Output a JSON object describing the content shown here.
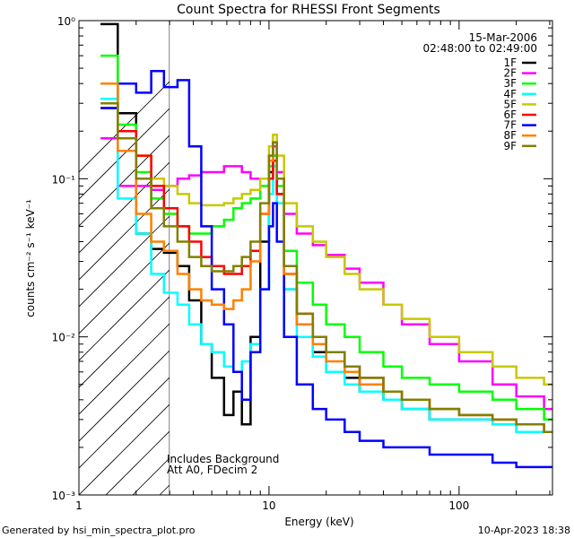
{
  "chart_data": {
    "type": "line",
    "title": "Count Spectra for RHESSI Front Segments",
    "xlabel": "Energy (keV)",
    "ylabel": "counts cm⁻² s⁻¹ keV⁻¹",
    "xscale": "log",
    "yscale": "log",
    "xlim": [
      1,
      310
    ],
    "ylim": [
      0.001,
      1.0
    ],
    "xticks": [
      {
        "value": 1,
        "label": "1"
      },
      {
        "value": 10,
        "label": "10"
      },
      {
        "value": 100,
        "label": "100"
      }
    ],
    "yticks": [
      {
        "value": 1,
        "label": "10⁰"
      },
      {
        "value": 0.1,
        "label": "10⁻¹"
      },
      {
        "value": 0.01,
        "label": "10⁻²"
      },
      {
        "value": 0.001,
        "label": "10⁻³"
      }
    ],
    "date": "15-Mar-2006",
    "time_range": "02:48:00 to 02:49:00",
    "annotation_lines": [
      "Includes Background",
      "Att A0, FDecim 2"
    ],
    "hatched_region_max_keV": 3,
    "legend_position": "top-right",
    "series": [
      {
        "name": "1F",
        "color": "#000000",
        "x": [
          1.3,
          1.6,
          2.0,
          2.4,
          2.8,
          3.3,
          3.8,
          4.4,
          5.0,
          5.8,
          6.5,
          7.2,
          8.0,
          9.0,
          10.0,
          10.5,
          11.0,
          12.0,
          14.0,
          17.0,
          20.0,
          25.0,
          30.0,
          40.0,
          50.0,
          70.0,
          100.0,
          150.0,
          200.0,
          280.0
        ],
        "y": [
          0.95,
          0.26,
          0.045,
          0.036,
          0.034,
          0.028,
          0.017,
          0.009,
          0.0055,
          0.0032,
          0.0045,
          0.0028,
          0.01,
          0.04,
          0.11,
          0.14,
          0.08,
          0.02,
          0.012,
          0.008,
          0.006,
          0.0055,
          0.0045,
          0.004,
          0.0035,
          0.003,
          0.003,
          0.0028,
          0.0025,
          0.0025
        ]
      },
      {
        "name": "2F",
        "color": "#ff00ff",
        "x": [
          1.3,
          1.6,
          2.0,
          2.4,
          2.8,
          3.3,
          3.8,
          4.4,
          5.0,
          5.8,
          6.5,
          7.2,
          8.0,
          9.0,
          10.0,
          10.5,
          11.0,
          12.0,
          14.0,
          17.0,
          20.0,
          25.0,
          30.0,
          40.0,
          50.0,
          70.0,
          100.0,
          150.0,
          200.0,
          280.0
        ],
        "y": [
          0.18,
          0.09,
          0.09,
          0.085,
          0.09,
          0.1,
          0.105,
          0.11,
          0.11,
          0.12,
          0.12,
          0.11,
          0.1,
          0.1,
          0.14,
          0.16,
          0.11,
          0.06,
          0.045,
          0.038,
          0.033,
          0.027,
          0.022,
          0.016,
          0.012,
          0.009,
          0.007,
          0.005,
          0.0042,
          0.0035
        ]
      },
      {
        "name": "3F",
        "color": "#00ff00",
        "x": [
          1.3,
          1.6,
          2.0,
          2.4,
          2.8,
          3.3,
          3.8,
          4.4,
          5.0,
          5.8,
          6.5,
          7.2,
          8.0,
          9.0,
          10.0,
          10.5,
          11.0,
          12.0,
          14.0,
          17.0,
          20.0,
          25.0,
          30.0,
          40.0,
          50.0,
          70.0,
          100.0,
          150.0,
          200.0,
          280.0
        ],
        "y": [
          0.6,
          0.22,
          0.11,
          0.075,
          0.06,
          0.05,
          0.045,
          0.045,
          0.05,
          0.055,
          0.065,
          0.07,
          0.075,
          0.09,
          0.12,
          0.14,
          0.09,
          0.035,
          0.022,
          0.016,
          0.012,
          0.01,
          0.008,
          0.0065,
          0.0055,
          0.005,
          0.0045,
          0.004,
          0.0035,
          0.003
        ]
      },
      {
        "name": "4F",
        "color": "#00ffff",
        "x": [
          1.3,
          1.6,
          2.0,
          2.4,
          2.8,
          3.3,
          3.8,
          4.4,
          5.0,
          5.8,
          6.5,
          7.2,
          8.0,
          9.0,
          10.0,
          10.5,
          11.0,
          12.0,
          14.0,
          17.0,
          20.0,
          25.0,
          30.0,
          40.0,
          50.0,
          70.0,
          100.0,
          150.0,
          200.0,
          280.0
        ],
        "y": [
          0.32,
          0.075,
          0.045,
          0.025,
          0.019,
          0.016,
          0.012,
          0.009,
          0.008,
          0.0065,
          0.006,
          0.007,
          0.009,
          0.02,
          0.08,
          0.12,
          0.07,
          0.02,
          0.01,
          0.0075,
          0.006,
          0.005,
          0.0045,
          0.004,
          0.0035,
          0.003,
          0.003,
          0.0028,
          0.0025,
          0.0025
        ]
      },
      {
        "name": "5F",
        "color": "#c8c800",
        "x": [
          1.3,
          1.6,
          2.0,
          2.4,
          2.8,
          3.3,
          3.8,
          4.4,
          5.0,
          5.8,
          6.5,
          7.2,
          8.0,
          9.0,
          10.0,
          10.5,
          11.0,
          12.0,
          14.0,
          17.0,
          20.0,
          25.0,
          30.0,
          40.0,
          50.0,
          70.0,
          100.0,
          150.0,
          200.0,
          280.0
        ],
        "y": [
          0.4,
          0.2,
          0.14,
          0.1,
          0.09,
          0.08,
          0.07,
          0.068,
          0.068,
          0.07,
          0.075,
          0.08,
          0.085,
          0.1,
          0.16,
          0.19,
          0.14,
          0.07,
          0.05,
          0.04,
          0.032,
          0.025,
          0.02,
          0.016,
          0.013,
          0.01,
          0.008,
          0.0065,
          0.0055,
          0.005
        ]
      },
      {
        "name": "6F",
        "color": "#ff0000",
        "x": [
          1.3,
          1.6,
          2.0,
          2.4,
          2.8,
          3.3,
          3.8,
          4.4,
          5.0,
          5.8,
          6.5,
          7.2,
          8.0,
          9.0,
          10.0,
          10.5,
          11.0,
          12.0,
          14.0,
          17.0,
          20.0,
          25.0,
          30.0,
          40.0,
          50.0,
          70.0,
          100.0,
          150.0,
          200.0,
          280.0
        ],
        "y": [
          0.28,
          0.2,
          0.14,
          0.09,
          0.065,
          0.05,
          0.04,
          0.032,
          0.028,
          0.025,
          0.025,
          0.028,
          0.035,
          0.06,
          0.1,
          0.13,
          0.08,
          0.025,
          0.014,
          0.01,
          0.008,
          0.0065,
          0.0055,
          0.0045,
          0.004,
          0.0035,
          0.0032,
          0.003,
          0.0028,
          0.0025
        ]
      },
      {
        "name": "7F",
        "color": "#0000ff",
        "x": [
          1.3,
          1.6,
          2.0,
          2.4,
          2.8,
          3.3,
          3.8,
          4.4,
          5.0,
          5.8,
          6.5,
          7.2,
          8.0,
          9.0,
          10.0,
          10.5,
          11.0,
          12.0,
          14.0,
          17.0,
          20.0,
          25.0,
          30.0,
          40.0,
          50.0,
          70.0,
          100.0,
          150.0,
          200.0,
          280.0
        ],
        "y": [
          0.28,
          0.4,
          0.35,
          0.48,
          0.38,
          0.42,
          0.16,
          0.05,
          0.02,
          0.012,
          0.006,
          0.004,
          0.008,
          0.02,
          0.05,
          0.07,
          0.04,
          0.01,
          0.005,
          0.0035,
          0.003,
          0.0025,
          0.0022,
          0.002,
          0.002,
          0.0018,
          0.0018,
          0.0016,
          0.0015,
          0.0015
        ]
      },
      {
        "name": "8F",
        "color": "#ff8000",
        "x": [
          1.3,
          1.6,
          2.0,
          2.4,
          2.8,
          3.3,
          3.8,
          4.4,
          5.0,
          5.8,
          6.5,
          7.2,
          8.0,
          9.0,
          10.0,
          10.5,
          11.0,
          12.0,
          14.0,
          17.0,
          20.0,
          25.0,
          30.0,
          40.0,
          50.0,
          70.0,
          100.0,
          150.0,
          200.0,
          280.0
        ],
        "y": [
          0.4,
          0.15,
          0.06,
          0.04,
          0.035,
          0.025,
          0.02,
          0.017,
          0.016,
          0.015,
          0.017,
          0.02,
          0.03,
          0.06,
          0.13,
          0.17,
          0.1,
          0.025,
          0.012,
          0.009,
          0.007,
          0.006,
          0.005,
          0.0045,
          0.004,
          0.0035,
          0.0032,
          0.003,
          0.0028,
          0.0025
        ]
      },
      {
        "name": "9F",
        "color": "#808000",
        "x": [
          1.3,
          1.6,
          2.0,
          2.4,
          2.8,
          3.3,
          3.8,
          4.4,
          5.0,
          5.8,
          6.5,
          7.2,
          8.0,
          9.0,
          10.0,
          10.5,
          11.0,
          12.0,
          14.0,
          17.0,
          20.0,
          25.0,
          30.0,
          40.0,
          50.0,
          70.0,
          100.0,
          150.0,
          200.0,
          280.0
        ],
        "y": [
          0.3,
          0.18,
          0.1,
          0.065,
          0.05,
          0.04,
          0.032,
          0.028,
          0.026,
          0.026,
          0.028,
          0.032,
          0.04,
          0.07,
          0.14,
          0.17,
          0.1,
          0.028,
          0.014,
          0.01,
          0.008,
          0.0065,
          0.0055,
          0.0045,
          0.004,
          0.0035,
          0.0032,
          0.003,
          0.0028,
          0.0025
        ]
      }
    ]
  },
  "footer": {
    "generated_by": "Generated by hsi_min_spectra_plot.pro",
    "timestamp": "10-Apr-2023 18:38"
  }
}
